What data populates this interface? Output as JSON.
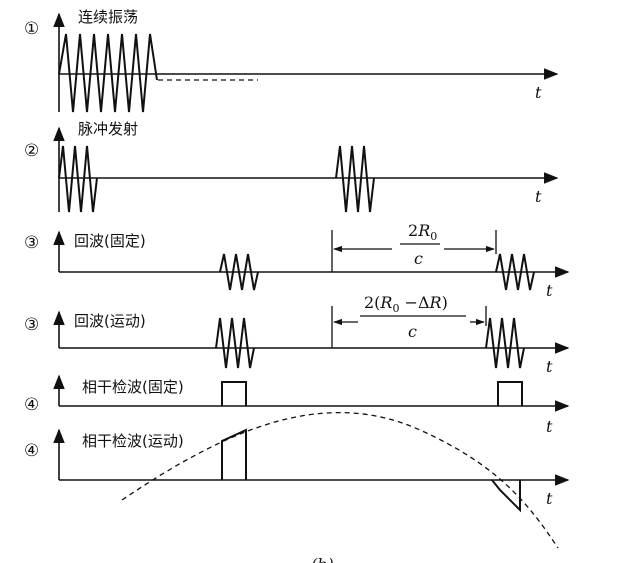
{
  "rows": [
    {
      "marker": "①",
      "label": "连续振荡",
      "axis": "t"
    },
    {
      "marker": "②",
      "label": "脉冲发射",
      "axis": "t"
    },
    {
      "marker": "③",
      "label": "回波(固定)",
      "axis": "t"
    },
    {
      "marker": "③",
      "label": "回波(运动)",
      "axis": "t"
    },
    {
      "marker": "④",
      "label": "相干检波(固定)",
      "axis": "t"
    },
    {
      "marker": "④",
      "label": "相干检波(运动)",
      "axis": "t"
    }
  ],
  "formula_fixed": {
    "num_pre": "2",
    "num_var": "R",
    "num_sub": "0",
    "den": "c"
  },
  "formula_moving": {
    "num_pre": "2(",
    "num_var": "R",
    "num_sub": "0",
    "num_post": " −Δ",
    "num_var2": "R",
    "num_close": ")",
    "den": "c"
  },
  "caption": "(b)",
  "colors": {
    "ink": "#111111",
    "background": "#ffffff"
  }
}
